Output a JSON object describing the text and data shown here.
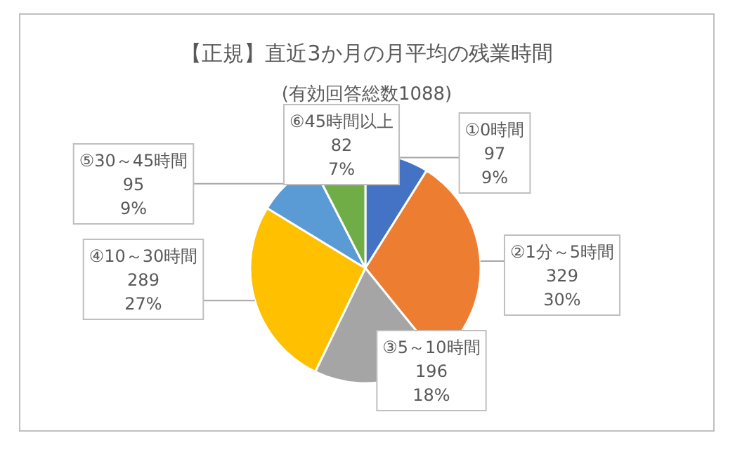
{
  "chart_data": {
    "type": "pie",
    "title": "【正規】直近3か月の月平均の残業時間",
    "subtitle": "(有効回答総数1088)",
    "categories": [
      "①0時間",
      "②1分～5時間",
      "③5～10時間",
      "④10～30時間",
      "⑤30～45時間",
      "⑥45時間以上"
    ],
    "values": [
      97,
      329,
      196,
      289,
      95,
      82
    ],
    "colors": [
      "#4472c4",
      "#ed7d31",
      "#a5a5a5",
      "#ffc000",
      "#5b9bd5",
      "#70ad47"
    ],
    "value_labels": [
      "97\n9%",
      "329\n30%",
      "196\n18%",
      "289\n27%",
      "95\n9%",
      "82\n7%"
    ]
  }
}
